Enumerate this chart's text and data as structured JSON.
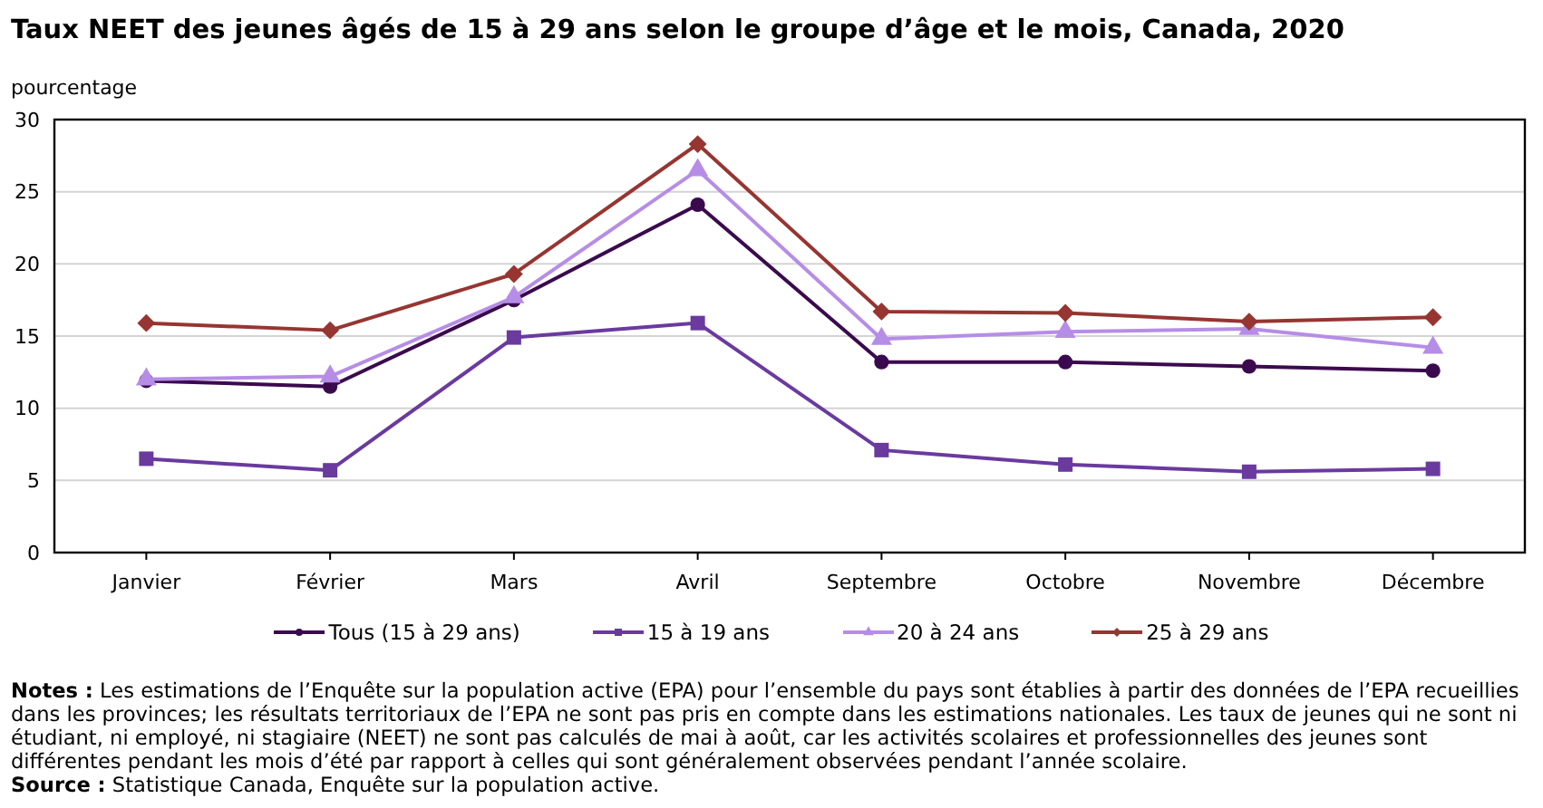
{
  "chart_data": {
    "type": "line",
    "title": "Taux NEET des jeunes âgés de 15 à 29 ans selon le groupe d’âge et le mois, Canada, 2020",
    "ylabel": "pourcentage",
    "categories": [
      "Janvier",
      "Février",
      "Mars",
      "Avril",
      "Septembre",
      "Octobre",
      "Novembre",
      "Décembre"
    ],
    "series": [
      {
        "name": "Tous (15 à 29 ans)",
        "color": "#3b0a4e",
        "marker": "circle",
        "values": [
          11.9,
          11.5,
          17.5,
          24.1,
          13.2,
          13.2,
          12.9,
          12.6
        ]
      },
      {
        "name": "15 à 19 ans",
        "color": "#6a3a9e",
        "marker": "square",
        "values": [
          6.5,
          5.7,
          14.9,
          15.9,
          7.1,
          6.1,
          5.6,
          5.8
        ]
      },
      {
        "name": "20 à 24 ans",
        "color": "#b68de6",
        "marker": "triangle",
        "values": [
          12.0,
          12.2,
          17.7,
          26.5,
          14.8,
          15.3,
          15.5,
          14.2
        ]
      },
      {
        "name": "25 à 29 ans",
        "color": "#963531",
        "marker": "diamond",
        "values": [
          15.9,
          15.4,
          19.3,
          28.3,
          16.7,
          16.6,
          16.0,
          16.3
        ]
      }
    ],
    "ylim": [
      0,
      30
    ],
    "yticks": [
      0,
      5,
      10,
      15,
      20,
      25,
      30
    ],
    "grid": "y",
    "legend": "bottom",
    "line_style": "solid",
    "annotations": [
      "Notes : Les estimations de l’Enquête sur la population active (EPA) pour l’ensemble du pays sont établies à partir des données de l’EPA recueillies dans les provinces; les résultats territoriaux de l’EPA ne sont pas pris en compte dans les estimations nationales. Les taux de jeunes qui ne sont ni étudiant, ni employé, ni stagiaire (NEET) ne sont pas calculés de mai à août, car les activités scolaires et professionnelles des jeunes sont différentes pendant les mois d’été par rapport à celles qui sont généralement observées pendant l’année scolaire.",
      "Source : Statistique Canada, Enquête sur la population active."
    ]
  }
}
